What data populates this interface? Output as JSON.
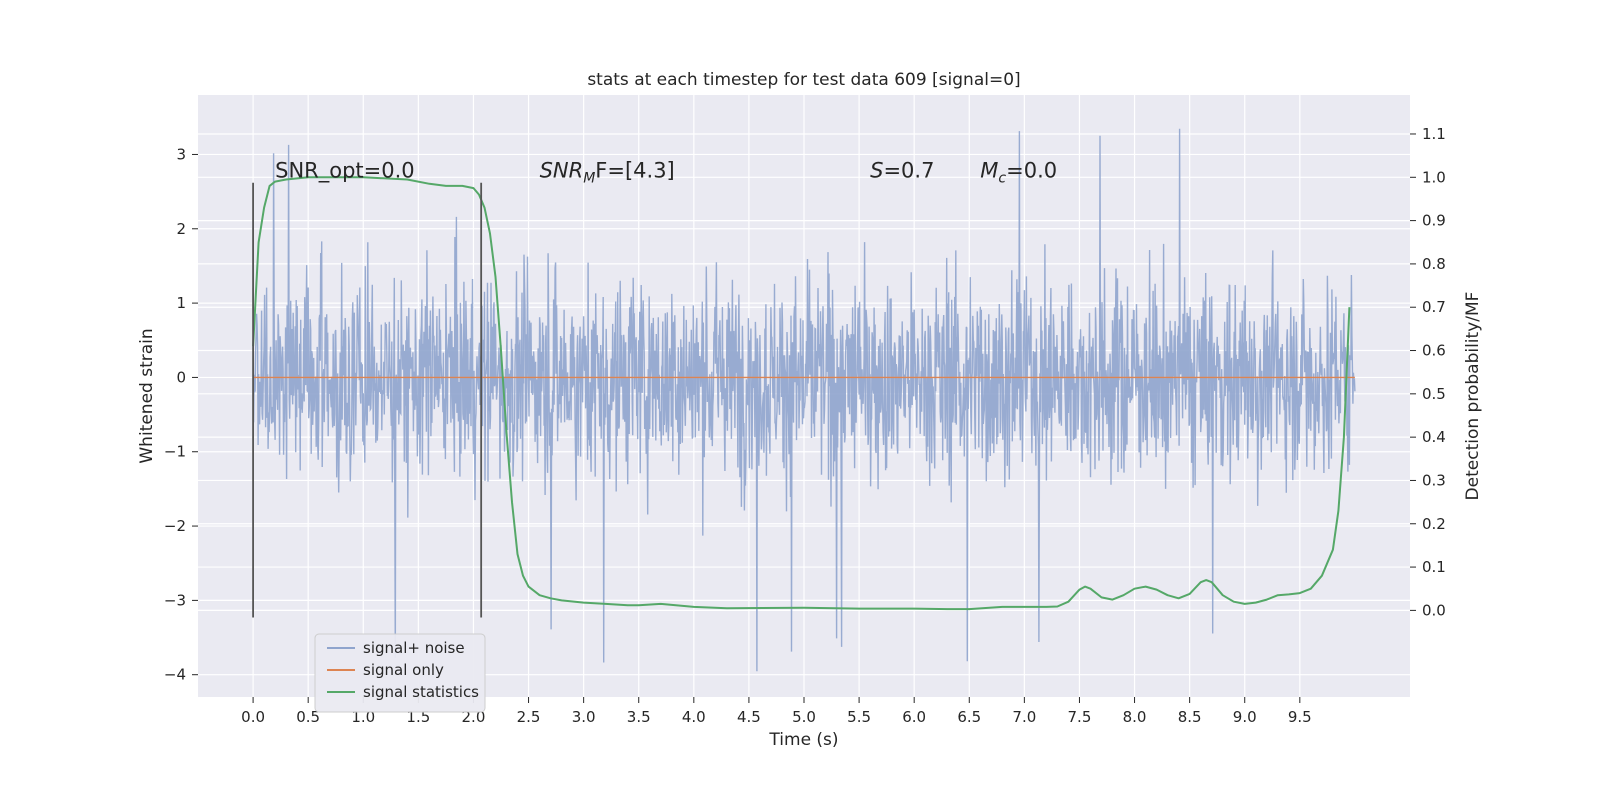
{
  "chart_data": {
    "type": "line",
    "title": "stats at each timestep for test data 609 [signal=0]",
    "xlabel": "Time (s)",
    "ylabel": "Whitened strain",
    "ylabel_right": "Detection probability/MF",
    "xlim": [
      -0.5,
      10.5
    ],
    "ylim": [
      -4.3,
      3.8
    ],
    "ylim_right": [
      -0.2,
      1.19
    ],
    "x_ticks": [
      "0.0",
      "0.5",
      "1.0",
      "1.5",
      "2.0",
      "2.5",
      "3.0",
      "3.5",
      "4.0",
      "4.5",
      "5.0",
      "5.5",
      "6.0",
      "6.5",
      "7.0",
      "7.5",
      "8.0",
      "8.5",
      "9.0",
      "9.5"
    ],
    "y_ticks": [
      "−4",
      "−3",
      "−2",
      "−1",
      "0",
      "1",
      "2",
      "3"
    ],
    "y_ticks_right": [
      "0.0",
      "0.1",
      "0.2",
      "0.3",
      "0.4",
      "0.5",
      "0.6",
      "0.7",
      "0.8",
      "0.9",
      "1.0",
      "1.1"
    ],
    "grid": true,
    "legend_position": "lower-left",
    "annotations": [
      {
        "x": 0.2,
        "text": "SNR_opt=0.0",
        "math": false
      },
      {
        "x": 2.6,
        "text": "SNR",
        "sub": "M",
        "suffix": "F=[4.3]",
        "math": true
      },
      {
        "x": 5.6,
        "text": "S",
        "suffix": "=0.7",
        "math": true
      },
      {
        "x": 6.6,
        "text": "M",
        "sub": "c",
        "suffix": "=0.0",
        "math": true
      }
    ],
    "vlines": [
      {
        "x": 0.0,
        "ymin": -3.23,
        "ymax": 2.62
      },
      {
        "x": 2.07,
        "ymin": -3.23,
        "ymax": 2.62
      }
    ],
    "series": [
      {
        "name": "signal+ noise",
        "axis": "left",
        "color": "#8fa4cd",
        "style": "noise",
        "x_range": [
          0.0,
          10.0
        ],
        "envelope": {
          "p5": [
            -1.45,
            1.45
          ],
          "extreme_max": 3.4,
          "extreme_min": -4.1
        }
      },
      {
        "name": "signal only",
        "axis": "left",
        "color": "#dd8452",
        "x": [
          0.0,
          10.0
        ],
        "y": [
          0.0,
          0.0
        ]
      },
      {
        "name": "signal statistics",
        "axis": "right",
        "color": "#55a868",
        "x": [
          0.0,
          0.05,
          0.1,
          0.15,
          0.2,
          0.3,
          0.5,
          1.0,
          1.4,
          1.6,
          1.75,
          1.9,
          2.0,
          2.05,
          2.1,
          2.15,
          2.2,
          2.25,
          2.3,
          2.35,
          2.4,
          2.45,
          2.5,
          2.6,
          2.7,
          2.8,
          3.0,
          3.2,
          3.4,
          3.5,
          3.7,
          4.0,
          4.3,
          5.0,
          5.5,
          6.0,
          6.3,
          6.5,
          6.8,
          7.0,
          7.2,
          7.3,
          7.4,
          7.5,
          7.55,
          7.6,
          7.7,
          7.8,
          7.9,
          8.0,
          8.1,
          8.2,
          8.3,
          8.4,
          8.5,
          8.6,
          8.65,
          8.7,
          8.8,
          8.9,
          9.0,
          9.1,
          9.2,
          9.3,
          9.4,
          9.5,
          9.6,
          9.7,
          9.8,
          9.85,
          9.9,
          9.95
        ],
        "y": [
          0.61,
          0.85,
          0.93,
          0.98,
          0.99,
          0.995,
          1.0,
          1.0,
          0.995,
          0.985,
          0.98,
          0.98,
          0.975,
          0.96,
          0.93,
          0.87,
          0.77,
          0.6,
          0.41,
          0.25,
          0.13,
          0.08,
          0.055,
          0.035,
          0.028,
          0.023,
          0.018,
          0.015,
          0.012,
          0.012,
          0.015,
          0.008,
          0.005,
          0.006,
          0.004,
          0.004,
          0.003,
          0.003,
          0.008,
          0.008,
          0.008,
          0.009,
          0.02,
          0.048,
          0.055,
          0.05,
          0.03,
          0.025,
          0.035,
          0.05,
          0.055,
          0.048,
          0.035,
          0.028,
          0.038,
          0.065,
          0.07,
          0.065,
          0.035,
          0.02,
          0.015,
          0.018,
          0.025,
          0.035,
          0.037,
          0.04,
          0.05,
          0.08,
          0.14,
          0.23,
          0.4,
          0.7
        ]
      }
    ]
  }
}
